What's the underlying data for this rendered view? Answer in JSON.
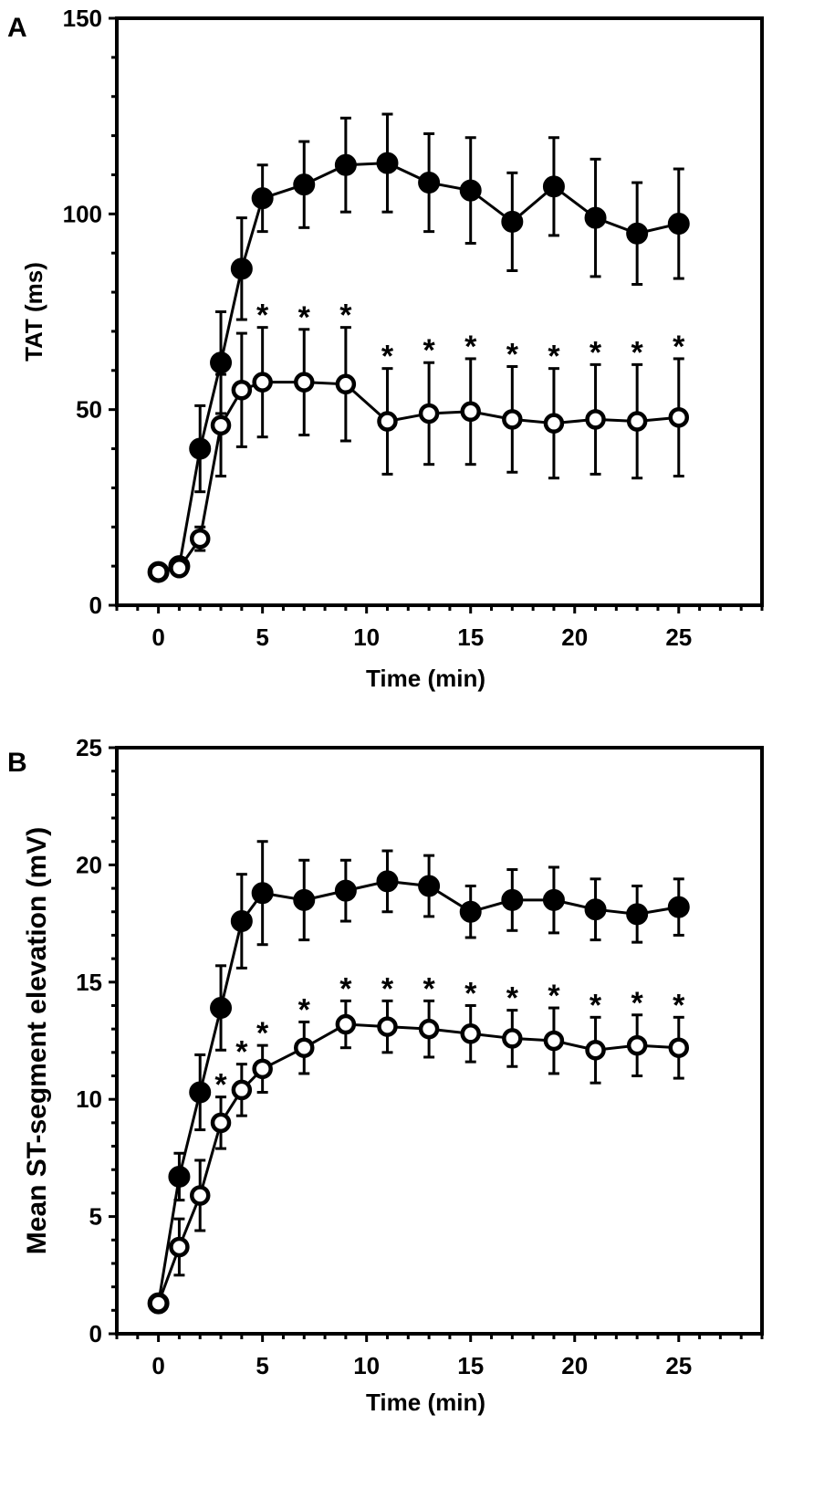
{
  "chart_data": [
    {
      "panel": "A",
      "type": "line",
      "xlabel": "Time (min)",
      "ylabel": "TAT (ms)",
      "xlim": [
        -2,
        29
      ],
      "ylim": [
        0,
        150
      ],
      "xticks": [
        0,
        5,
        10,
        15,
        20,
        25
      ],
      "yticks": [
        0,
        50,
        100,
        150
      ],
      "grid": false,
      "significance_symbol": "*",
      "series": [
        {
          "name": "filled",
          "marker": "filled-circle",
          "x": [
            0,
            1,
            2,
            3,
            4,
            5,
            7,
            9,
            11,
            13,
            15,
            17,
            19,
            21,
            23,
            25
          ],
          "y": [
            8.5,
            10,
            40,
            62,
            86,
            104,
            107.5,
            112.5,
            113,
            108,
            106,
            98,
            107,
            99,
            95,
            97.5
          ],
          "err": [
            0,
            0,
            11,
            13,
            13,
            8.5,
            11,
            12,
            12.5,
            12.5,
            13.5,
            12.5,
            12.5,
            15,
            13,
            14
          ]
        },
        {
          "name": "open",
          "marker": "open-circle",
          "x": [
            0,
            1,
            2,
            3,
            4,
            5,
            7,
            9,
            11,
            13,
            15,
            17,
            19,
            21,
            23,
            25
          ],
          "y": [
            8.5,
            9.5,
            17,
            46,
            55,
            57,
            57,
            56.5,
            47,
            49,
            49.5,
            47.5,
            46.5,
            47.5,
            47,
            48
          ],
          "err": [
            0,
            0,
            3,
            13,
            14.5,
            14,
            13.5,
            14.5,
            13.5,
            13,
            13.5,
            13.5,
            14,
            14,
            14.5,
            15
          ],
          "significant": [
            false,
            false,
            false,
            false,
            false,
            true,
            true,
            true,
            true,
            true,
            true,
            true,
            true,
            true,
            true,
            true
          ]
        }
      ]
    },
    {
      "panel": "B",
      "type": "line",
      "xlabel": "Time (min)",
      "ylabel": "Mean ST-segment elevation (mV)",
      "xlim": [
        -2,
        29
      ],
      "ylim": [
        0,
        25
      ],
      "xticks": [
        0,
        5,
        10,
        15,
        20,
        25
      ],
      "yticks": [
        0,
        5,
        10,
        15,
        20,
        25
      ],
      "grid": false,
      "significance_symbol": "*",
      "series": [
        {
          "name": "filled",
          "marker": "filled-circle",
          "x": [
            0,
            1,
            2,
            3,
            4,
            5,
            7,
            9,
            11,
            13,
            15,
            17,
            19,
            21,
            23,
            25
          ],
          "y": [
            1.3,
            6.7,
            10.3,
            13.9,
            17.6,
            18.8,
            18.5,
            18.9,
            19.3,
            19.1,
            18.0,
            18.5,
            18.5,
            18.1,
            17.9,
            18.2
          ],
          "err": [
            0,
            1.0,
            1.6,
            1.8,
            2.0,
            2.2,
            1.7,
            1.3,
            1.3,
            1.3,
            1.1,
            1.3,
            1.4,
            1.3,
            1.2,
            1.2
          ]
        },
        {
          "name": "open",
          "marker": "open-circle",
          "x": [
            0,
            1,
            2,
            3,
            4,
            5,
            7,
            9,
            11,
            13,
            15,
            17,
            19,
            21,
            23,
            25
          ],
          "y": [
            1.3,
            3.7,
            5.9,
            9.0,
            10.4,
            11.3,
            12.2,
            13.2,
            13.1,
            13.0,
            12.8,
            12.6,
            12.5,
            12.1,
            12.3,
            12.2
          ],
          "err": [
            0,
            1.2,
            1.5,
            1.1,
            1.1,
            1.0,
            1.1,
            1.0,
            1.1,
            1.2,
            1.2,
            1.2,
            1.4,
            1.4,
            1.3,
            1.3
          ],
          "significant": [
            false,
            false,
            false,
            true,
            true,
            true,
            true,
            true,
            true,
            true,
            true,
            true,
            true,
            true,
            true,
            true
          ]
        }
      ]
    }
  ]
}
